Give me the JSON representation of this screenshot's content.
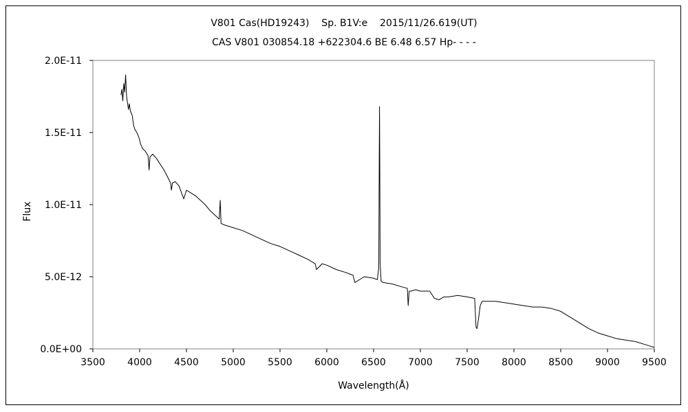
{
  "chart_data": {
    "type": "line",
    "title": "V801 Cas(HD19243)    Sp. B1V:e    2015/11/26.619(UT)",
    "subtitle": "CAS V801 030854.18 +622304.6 BE 6.48 6.57 Hp- - - -",
    "xlabel": "Wavelength(Å)",
    "ylabel": "Flux",
    "xlim": [
      3500,
      9500
    ],
    "ylim": [
      0,
      2e-11
    ],
    "xticks": [
      3500,
      4000,
      4500,
      5000,
      5500,
      6000,
      6500,
      7000,
      7500,
      8000,
      8500,
      9000,
      9500
    ],
    "xtick_labels": [
      "3500",
      "4000",
      "4500",
      "5000",
      "5500",
      "6000",
      "6500",
      "7000",
      "7500",
      "8000",
      "8500",
      "9000",
      "9500"
    ],
    "yticks": [
      0,
      5e-12,
      1e-11,
      1.5e-11,
      2e-11
    ],
    "ytick_labels": [
      "0.0E+00",
      "5.0E-12",
      "1.0E-11",
      "1.5E-11",
      "2.0E-11"
    ],
    "grid": false,
    "legend": "none",
    "series": [
      {
        "color": "#000000",
        "x": [
          3800,
          3810,
          3820,
          3830,
          3840,
          3850,
          3860,
          3880,
          3890,
          3900,
          3920,
          3935,
          3950,
          3970,
          3990,
          4010,
          4030,
          4060,
          4090,
          4101,
          4110,
          4140,
          4180,
          4220,
          4260,
          4300,
          4330,
          4340,
          4350,
          4380,
          4420,
          4471,
          4500,
          4550,
          4600,
          4650,
          4700,
          4750,
          4800,
          4850,
          4861,
          4870,
          4900,
          5000,
          5100,
          5200,
          5300,
          5400,
          5500,
          5600,
          5700,
          5800,
          5876,
          5890,
          5950,
          6000,
          6100,
          6200,
          6280,
          6300,
          6400,
          6500,
          6540,
          6555,
          6560,
          6563,
          6566,
          6570,
          6580,
          6600,
          6700,
          6800,
          6860,
          6870,
          6880,
          6900,
          6950,
          7000,
          7100,
          7150,
          7200,
          7250,
          7300,
          7400,
          7500,
          7580,
          7595,
          7605,
          7620,
          7640,
          7660,
          7700,
          7800,
          7900,
          8000,
          8100,
          8200,
          8300,
          8400,
          8500,
          8600,
          8700,
          8800,
          8900,
          9000,
          9100,
          9200,
          9300,
          9400,
          9450,
          9500
        ],
        "y": [
          1.76e-11,
          1.8e-11,
          1.72e-11,
          1.84e-11,
          1.78e-11,
          1.9e-11,
          1.75e-11,
          1.66e-11,
          1.7e-11,
          1.65e-11,
          1.62e-11,
          1.55e-11,
          1.52e-11,
          1.5e-11,
          1.47e-11,
          1.42e-11,
          1.39e-11,
          1.37e-11,
          1.34e-11,
          1.24e-11,
          1.33e-11,
          1.35e-11,
          1.32e-11,
          1.28e-11,
          1.24e-11,
          1.19e-11,
          1.15e-11,
          1.1e-11,
          1.15e-11,
          1.16e-11,
          1.13e-11,
          1.04e-11,
          1.1e-11,
          1.08e-11,
          1.06e-11,
          1.03e-11,
          1e-11,
          9.6e-12,
          9.3e-12,
          9e-12,
          1.03e-11,
          8.7e-12,
          8.6e-12,
          8.4e-12,
          8.2e-12,
          7.9e-12,
          7.6e-12,
          7.3e-12,
          7.1e-12,
          6.8e-12,
          6.5e-12,
          6.2e-12,
          5.9e-12,
          5.5e-12,
          5.9e-12,
          5.8e-12,
          5.5e-12,
          5.3e-12,
          5.1e-12,
          4.6e-12,
          5e-12,
          4.9e-12,
          4.8e-12,
          5.6e-12,
          1.3e-11,
          1.68e-11,
          1.3e-11,
          6e-12,
          4.7e-12,
          4.6e-12,
          4.5e-12,
          4.3e-12,
          4.2e-12,
          3e-12,
          4e-12,
          4e-12,
          4.1e-12,
          4e-12,
          4e-12,
          3.5e-12,
          3.4e-12,
          3.6e-12,
          3.6e-12,
          3.7e-12,
          3.6e-12,
          3.5e-12,
          1.5e-12,
          1.4e-12,
          2e-12,
          3e-12,
          3.3e-12,
          3.3e-12,
          3.3e-12,
          3.2e-12,
          3.1e-12,
          3e-12,
          2.9e-12,
          2.9e-12,
          2.8e-12,
          2.6e-12,
          2.2e-12,
          1.8e-12,
          1.4e-12,
          1.1e-12,
          9e-13,
          7e-13,
          6e-13,
          5e-13,
          3e-13,
          2e-13,
          1e-13
        ]
      }
    ]
  }
}
